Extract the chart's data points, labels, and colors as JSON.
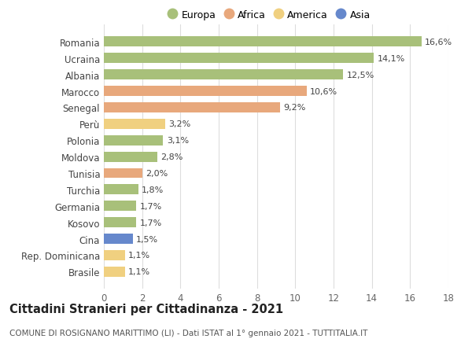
{
  "countries": [
    "Romania",
    "Ucraina",
    "Albania",
    "Marocco",
    "Senegal",
    "Perù",
    "Polonia",
    "Moldova",
    "Tunisia",
    "Turchia",
    "Germania",
    "Kosovo",
    "Cina",
    "Rep. Dominicana",
    "Brasile"
  ],
  "values": [
    16.6,
    14.1,
    12.5,
    10.6,
    9.2,
    3.2,
    3.1,
    2.8,
    2.0,
    1.8,
    1.7,
    1.7,
    1.5,
    1.1,
    1.1
  ],
  "labels": [
    "16,6%",
    "14,1%",
    "12,5%",
    "10,6%",
    "9,2%",
    "3,2%",
    "3,1%",
    "2,8%",
    "2,0%",
    "1,8%",
    "1,7%",
    "1,7%",
    "1,5%",
    "1,1%",
    "1,1%"
  ],
  "continents": [
    "Europa",
    "Europa",
    "Europa",
    "Africa",
    "Africa",
    "America",
    "Europa",
    "Europa",
    "Africa",
    "Europa",
    "Europa",
    "Europa",
    "Asia",
    "America",
    "America"
  ],
  "colors": {
    "Europa": "#a8c07a",
    "Africa": "#e8a87c",
    "America": "#f0d080",
    "Asia": "#6688cc"
  },
  "xlim": [
    0,
    18
  ],
  "xticks": [
    0,
    2,
    4,
    6,
    8,
    10,
    12,
    14,
    16,
    18
  ],
  "title": "Cittadini Stranieri per Cittadinanza - 2021",
  "subtitle": "COMUNE DI ROSIGNANO MARITTIMO (LI) - Dati ISTAT al 1° gennaio 2021 - TUTTITALIA.IT",
  "background_color": "#ffffff",
  "grid_color": "#dddddd",
  "bar_height": 0.62,
  "label_fontsize": 8.0,
  "ytick_fontsize": 8.5,
  "xtick_fontsize": 8.5,
  "title_fontsize": 10.5,
  "subtitle_fontsize": 7.5,
  "legend_fontsize": 9.0
}
